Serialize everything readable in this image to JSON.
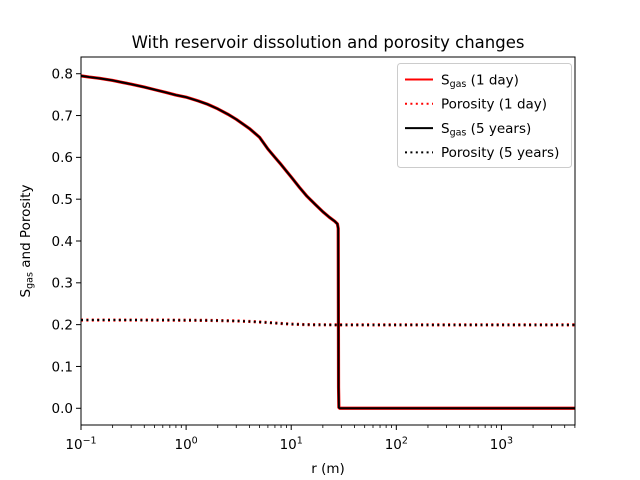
{
  "figure": {
    "background": "#ffffff"
  },
  "chart_data": {
    "type": "line",
    "title": "With reservoir dissolution and porosity changes",
    "xlabel": "r (m)",
    "ylabel": "S_gas and Porosity",
    "ylabel_parts": {
      "pre": "S",
      "sub": "gas",
      "post": " and Porosity"
    },
    "x_scale": "log",
    "y_scale": "linear",
    "xlim": [
      0.1,
      5012
    ],
    "ylim": [
      -0.04,
      0.84
    ],
    "grid": false,
    "axis_color": "#000000",
    "x_ticks": [
      {
        "value": 0.1,
        "base": "10",
        "exp": "−1"
      },
      {
        "value": 1,
        "base": "10",
        "exp": "0"
      },
      {
        "value": 10,
        "base": "10",
        "exp": "1"
      },
      {
        "value": 100,
        "base": "10",
        "exp": "2"
      },
      {
        "value": 1000,
        "base": "10",
        "exp": "3"
      }
    ],
    "y_ticks": [
      {
        "value": 0.0,
        "label": "0.0"
      },
      {
        "value": 0.1,
        "label": "0.1"
      },
      {
        "value": 0.2,
        "label": "0.2"
      },
      {
        "value": 0.3,
        "label": "0.3"
      },
      {
        "value": 0.4,
        "label": "0.4"
      },
      {
        "value": 0.5,
        "label": "0.5"
      },
      {
        "value": 0.6,
        "label": "0.6"
      },
      {
        "value": 0.7,
        "label": "0.7"
      },
      {
        "value": 0.8,
        "label": "0.8"
      }
    ],
    "legend": {
      "position": "upper right",
      "border_color": "#cccccc",
      "background": "#ffffff"
    },
    "series": [
      {
        "id": "sgas-1day",
        "name": "S_gas (1 day)",
        "label_parts": {
          "pre": "S",
          "sub": "gas",
          "post": " (1 day)"
        },
        "color": "#ff0000",
        "style": "solid",
        "points": [
          [
            0.1,
            0.795
          ],
          [
            0.12,
            0.792
          ],
          [
            0.15,
            0.789
          ],
          [
            0.2,
            0.784
          ],
          [
            0.25,
            0.779
          ],
          [
            0.3,
            0.775
          ],
          [
            0.4,
            0.768
          ],
          [
            0.5,
            0.762
          ],
          [
            0.65,
            0.755
          ],
          [
            0.8,
            0.749
          ],
          [
            1.0,
            0.744
          ],
          [
            1.3,
            0.735
          ],
          [
            1.6,
            0.727
          ],
          [
            2.0,
            0.716
          ],
          [
            2.5,
            0.703
          ],
          [
            3.0,
            0.691
          ],
          [
            4.0,
            0.669
          ],
          [
            5.0,
            0.648
          ],
          [
            6.0,
            0.62
          ],
          [
            7.0,
            0.6
          ],
          [
            8.0,
            0.583
          ],
          [
            9.0,
            0.567
          ],
          [
            10.0,
            0.553
          ],
          [
            12.0,
            0.528
          ],
          [
            14.0,
            0.508
          ],
          [
            17.0,
            0.487
          ],
          [
            20.0,
            0.47
          ],
          [
            23.0,
            0.457
          ],
          [
            26.0,
            0.447
          ],
          [
            27.5,
            0.441
          ],
          [
            28.0,
            0.43
          ],
          [
            28.1,
            0.25
          ],
          [
            28.2,
            0.05
          ],
          [
            28.4,
            0.002
          ],
          [
            29.0,
            0.0
          ],
          [
            50.0,
            0.0
          ],
          [
            100.0,
            0.0
          ],
          [
            500.0,
            0.0
          ],
          [
            1000.0,
            0.0
          ],
          [
            5000.0,
            0.0
          ]
        ]
      },
      {
        "id": "porosity-1day",
        "name": "Porosity (1 day)",
        "label_parts": {
          "pre": "Porosity (1 day)",
          "sub": "",
          "post": ""
        },
        "color": "#ff0000",
        "style": "dotted",
        "points": [
          [
            0.1,
            0.211
          ],
          [
            0.3,
            0.211
          ],
          [
            0.6,
            0.2108
          ],
          [
            1.0,
            0.2105
          ],
          [
            1.5,
            0.2102
          ],
          [
            2.0,
            0.2098
          ],
          [
            3.0,
            0.2088
          ],
          [
            4.0,
            0.2076
          ],
          [
            5.0,
            0.2063
          ],
          [
            6.0,
            0.205
          ],
          [
            8.0,
            0.2028
          ],
          [
            10.0,
            0.2012
          ],
          [
            13.0,
            0.2002
          ],
          [
            16.0,
            0.1998
          ],
          [
            20.0,
            0.1996
          ],
          [
            28.0,
            0.1995
          ],
          [
            50.0,
            0.1995
          ],
          [
            100.0,
            0.1995
          ],
          [
            1000.0,
            0.1995
          ],
          [
            5000.0,
            0.1995
          ]
        ]
      },
      {
        "id": "sgas-5years",
        "name": "S_gas (5 years)",
        "label_parts": {
          "pre": "S",
          "sub": "gas",
          "post": " (5 years)"
        },
        "color": "#000000",
        "style": "solid",
        "points": [
          [
            0.1,
            0.795
          ],
          [
            0.12,
            0.792
          ],
          [
            0.15,
            0.789
          ],
          [
            0.2,
            0.784
          ],
          [
            0.25,
            0.779
          ],
          [
            0.3,
            0.775
          ],
          [
            0.4,
            0.768
          ],
          [
            0.5,
            0.762
          ],
          [
            0.65,
            0.755
          ],
          [
            0.8,
            0.749
          ],
          [
            1.0,
            0.744
          ],
          [
            1.3,
            0.735
          ],
          [
            1.6,
            0.727
          ],
          [
            2.0,
            0.716
          ],
          [
            2.5,
            0.703
          ],
          [
            3.0,
            0.691
          ],
          [
            4.0,
            0.669
          ],
          [
            5.0,
            0.648
          ],
          [
            6.0,
            0.62
          ],
          [
            7.0,
            0.6
          ],
          [
            8.0,
            0.583
          ],
          [
            9.0,
            0.567
          ],
          [
            10.0,
            0.553
          ],
          [
            12.0,
            0.528
          ],
          [
            14.0,
            0.508
          ],
          [
            17.0,
            0.487
          ],
          [
            20.0,
            0.47
          ],
          [
            23.0,
            0.457
          ],
          [
            26.0,
            0.447
          ],
          [
            27.5,
            0.441
          ],
          [
            28.0,
            0.43
          ],
          [
            28.1,
            0.25
          ],
          [
            28.2,
            0.05
          ],
          [
            28.4,
            0.002
          ],
          [
            29.0,
            0.0
          ],
          [
            50.0,
            0.0
          ],
          [
            100.0,
            0.0
          ],
          [
            500.0,
            0.0
          ],
          [
            1000.0,
            0.0
          ],
          [
            5000.0,
            0.0
          ]
        ]
      },
      {
        "id": "porosity-5years",
        "name": "Porosity (5 years)",
        "label_parts": {
          "pre": "Porosity (5 years)",
          "sub": "",
          "post": ""
        },
        "color": "#000000",
        "style": "dotted",
        "points": [
          [
            0.1,
            0.211
          ],
          [
            0.3,
            0.211
          ],
          [
            0.6,
            0.2108
          ],
          [
            1.0,
            0.2105
          ],
          [
            1.5,
            0.2102
          ],
          [
            2.0,
            0.2098
          ],
          [
            3.0,
            0.2088
          ],
          [
            4.0,
            0.2076
          ],
          [
            5.0,
            0.2063
          ],
          [
            6.0,
            0.205
          ],
          [
            8.0,
            0.2028
          ],
          [
            10.0,
            0.2012
          ],
          [
            13.0,
            0.2002
          ],
          [
            16.0,
            0.1998
          ],
          [
            20.0,
            0.1996
          ],
          [
            28.0,
            0.1995
          ],
          [
            50.0,
            0.1995
          ],
          [
            100.0,
            0.1995
          ],
          [
            1000.0,
            0.1995
          ],
          [
            5000.0,
            0.1995
          ]
        ]
      }
    ]
  }
}
